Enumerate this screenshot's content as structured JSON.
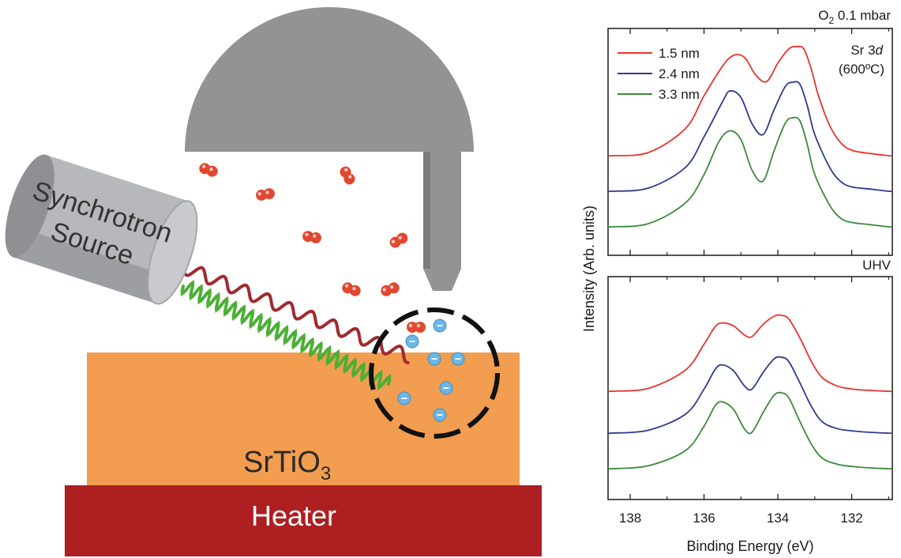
{
  "diagram": {
    "source_line1": "Synchrotron",
    "source_line2": "Source",
    "substrate_base": "SrTiO",
    "substrate_sub": "3",
    "heater_label": "Heater",
    "colors": {
      "detector": "#939393",
      "source_body": "#b3b5b8",
      "substrate": "#f29d4f",
      "heater": "#ad1f21",
      "xray_red": "#a12a2f",
      "xray_green": "#4caf35",
      "oxygen": "#e2472f",
      "electron": "#6cb6e6"
    }
  },
  "panel_top": {
    "cond_pre": "O",
    "cond_sub": "2",
    "cond_post": " 0.1 mbar",
    "peak_line1": "Sr 3",
    "peak_italic": "d",
    "peak_line2": "(600ºC)"
  },
  "panel_bottom": {
    "cond": "UHV"
  },
  "axes": {
    "ylabel": "Intensity (Arb. units)",
    "xlabel": "Binding Energy (eV)"
  },
  "chart_data": [
    {
      "type": "line",
      "panel": "top",
      "condition": "O2 0.1 mbar",
      "x_range": [
        138.6,
        130.9
      ],
      "x_reversed": true,
      "xticks": [
        138,
        136,
        134,
        132
      ],
      "series": [
        {
          "name": "1.5 nm",
          "color": "#e8332d",
          "x": [
            138.5,
            137.5,
            136.5,
            136.0,
            135.5,
            135.2,
            134.9,
            134.6,
            134.3,
            134.0,
            133.7,
            133.5,
            133.3,
            133.1,
            132.9,
            132.6,
            132.3,
            132.0,
            131.5,
            131.0
          ],
          "y": [
            0.0,
            0.03,
            0.25,
            0.55,
            0.82,
            0.92,
            0.9,
            0.74,
            0.68,
            0.85,
            0.98,
            1.0,
            0.98,
            0.8,
            0.55,
            0.28,
            0.12,
            0.05,
            0.02,
            0.0
          ]
        },
        {
          "name": "2.4 nm",
          "color": "#2e3a8c",
          "x": [
            138.5,
            137.5,
            136.5,
            136.0,
            135.5,
            135.3,
            135.0,
            134.7,
            134.4,
            134.1,
            133.8,
            133.6,
            133.4,
            133.2,
            133.0,
            132.6,
            132.3,
            132.0,
            131.5,
            131.0
          ],
          "y": [
            0.0,
            0.03,
            0.22,
            0.5,
            0.82,
            0.92,
            0.86,
            0.62,
            0.52,
            0.75,
            0.96,
            1.0,
            0.98,
            0.78,
            0.52,
            0.22,
            0.09,
            0.04,
            0.02,
            0.0
          ]
        },
        {
          "name": "3.3 nm",
          "color": "#3a8a3a",
          "x": [
            138.5,
            137.5,
            136.5,
            136.0,
            135.6,
            135.3,
            135.0,
            134.7,
            134.4,
            134.1,
            133.8,
            133.6,
            133.4,
            133.2,
            133.0,
            132.6,
            132.3,
            132.0,
            131.5,
            131.0
          ],
          "y": [
            0.0,
            0.03,
            0.22,
            0.48,
            0.78,
            0.88,
            0.8,
            0.52,
            0.42,
            0.7,
            0.95,
            1.0,
            0.97,
            0.75,
            0.48,
            0.2,
            0.08,
            0.04,
            0.02,
            0.0
          ]
        }
      ]
    },
    {
      "type": "line",
      "panel": "bottom",
      "condition": "UHV",
      "x_range": [
        138.6,
        130.9
      ],
      "x_reversed": true,
      "xticks": [
        138,
        136,
        134,
        132
      ],
      "series": [
        {
          "name": "1.5 nm",
          "color": "#e8332d",
          "x": [
            138.5,
            137.5,
            136.5,
            136.0,
            135.7,
            135.5,
            135.2,
            134.9,
            134.7,
            134.4,
            134.1,
            133.9,
            133.7,
            133.4,
            133.1,
            132.8,
            132.4,
            132.0,
            131.5,
            131.0
          ],
          "y": [
            0.0,
            0.04,
            0.28,
            0.62,
            0.85,
            0.9,
            0.86,
            0.74,
            0.72,
            0.88,
            0.99,
            1.0,
            0.95,
            0.7,
            0.4,
            0.18,
            0.07,
            0.03,
            0.01,
            0.0
          ]
        },
        {
          "name": "2.4 nm",
          "color": "#2e3a8c",
          "x": [
            138.5,
            137.5,
            136.5,
            136.0,
            135.7,
            135.5,
            135.2,
            134.9,
            134.7,
            134.4,
            134.1,
            133.9,
            133.7,
            133.4,
            133.1,
            132.8,
            132.4,
            132.0,
            131.5,
            131.0
          ],
          "y": [
            0.0,
            0.04,
            0.25,
            0.58,
            0.84,
            0.9,
            0.82,
            0.62,
            0.58,
            0.8,
            0.98,
            1.0,
            0.94,
            0.66,
            0.36,
            0.15,
            0.06,
            0.03,
            0.01,
            0.0
          ]
        },
        {
          "name": "3.3 nm",
          "color": "#3a8a3a",
          "x": [
            138.5,
            137.5,
            136.5,
            136.0,
            135.7,
            135.5,
            135.2,
            134.9,
            134.7,
            134.4,
            134.1,
            133.9,
            133.7,
            133.4,
            133.1,
            132.8,
            132.4,
            132.0,
            131.5,
            131.0
          ],
          "y": [
            0.0,
            0.04,
            0.24,
            0.56,
            0.83,
            0.88,
            0.78,
            0.52,
            0.48,
            0.74,
            0.97,
            1.0,
            0.93,
            0.62,
            0.33,
            0.14,
            0.06,
            0.03,
            0.01,
            0.0
          ]
        }
      ]
    }
  ]
}
